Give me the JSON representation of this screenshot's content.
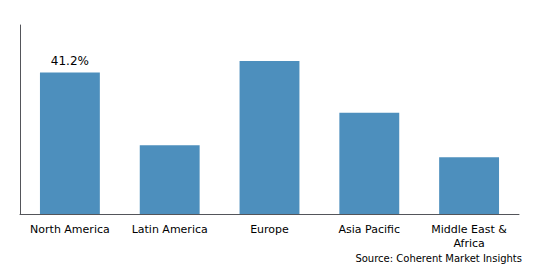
{
  "chart_data": {
    "type": "bar",
    "categories": [
      "North America",
      "Latin America",
      "Europe",
      "Asia Pacific",
      "Middle East &\nAfrica"
    ],
    "values": [
      41.2,
      20.0,
      44.5,
      29.5,
      16.5
    ],
    "color": "#4d8fbd",
    "ylim": [
      0,
      55
    ],
    "grid": false,
    "tick_labels": "x",
    "annotations": [
      {
        "category": "North America",
        "text": "41.2%"
      }
    ],
    "source": "Source: Coherent Market Insights"
  }
}
